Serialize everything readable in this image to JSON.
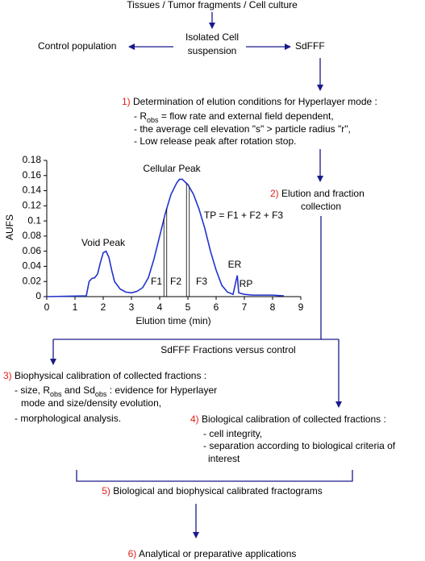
{
  "diagram": {
    "source": "Tissues / Tumor fragments / Cell culture",
    "suspension": [
      "Isolated Cell",
      "suspension"
    ],
    "control": "Control population",
    "sdfff": "SdFFF",
    "step1": {
      "number": "1)",
      "title": "Determination of elution conditions for Hyperlayer mode :",
      "items": [
        [
          "- R",
          "obs",
          " = flow rate and external field dependent,"
        ],
        [
          "- the average cell elevation \"s\" > particle radius \"r\","
        ],
        [
          "- Low release peak after rotation stop."
        ]
      ]
    },
    "step2": {
      "number": "2)",
      "lines": [
        "Elution and fraction",
        "collection"
      ]
    },
    "fractions_vs_control": "SdFFF Fractions versus control",
    "step3": {
      "number": "3)",
      "title": "Biophysical calibration of collected fractions :",
      "items": [
        [
          "- size, R",
          "obs",
          " and Sd",
          "obs",
          " : evidence for Hyperlayer"
        ],
        [
          "mode and size/density evolution,"
        ],
        [
          "- morphological analysis."
        ]
      ]
    },
    "step4": {
      "number": "4)",
      "title": "Biological calibration of collected fractions :",
      "items": [
        [
          "- cell integrity,"
        ],
        [
          "- separation according to biological criteria of"
        ],
        [
          "interest"
        ]
      ]
    },
    "step5": {
      "number": "5)",
      "title": "Biological and biophysical calibrated fractograms"
    },
    "step6": {
      "number": "6)",
      "title": "Analytical or preparative applications"
    }
  },
  "chart_data": {
    "type": "line",
    "x_label": "Elution time (min)",
    "y_label": "AUFS",
    "x": [
      0,
      1.4,
      1.5,
      1.6,
      1.7,
      1.8,
      1.9,
      2.0,
      2.1,
      2.2,
      2.3,
      2.4,
      2.6,
      2.8,
      3.0,
      3.2,
      3.4,
      3.6,
      3.8,
      4.0,
      4.2,
      4.4,
      4.6,
      4.7,
      4.8,
      5.0,
      5.2,
      5.4,
      5.6,
      5.8,
      6.0,
      6.2,
      6.4,
      6.6,
      6.7,
      6.75,
      6.8,
      6.9,
      7.0,
      7.3,
      8.0,
      8.4
    ],
    "values": [
      0,
      0.001,
      0.02,
      0.024,
      0.025,
      0.03,
      0.045,
      0.058,
      0.06,
      0.052,
      0.035,
      0.02,
      0.01,
      0.006,
      0.005,
      0.007,
      0.012,
      0.025,
      0.05,
      0.08,
      0.11,
      0.135,
      0.15,
      0.155,
      0.155,
      0.148,
      0.135,
      0.115,
      0.09,
      0.06,
      0.035,
      0.015,
      0.006,
      0.003,
      0.02,
      0.028,
      0.005,
      0.004,
      0.003,
      0.002,
      0.002,
      0.001
    ],
    "color": "#2233cc",
    "fraction_limits": [
      4.15,
      4.25,
      4.95,
      5.05
    ],
    "annotations": [
      "Void Peak",
      "Cellular Peak",
      "TP = F1 + F2 + F3",
      "F1",
      "F2",
      "F3",
      "ER",
      "RP"
    ],
    "xlim": [
      0,
      9
    ],
    "xticks": [
      0,
      1,
      2,
      3,
      4,
      5,
      6,
      7,
      8,
      9
    ],
    "ylim": [
      0,
      0.18
    ],
    "yticks": [
      0,
      0.02,
      0.04,
      0.06,
      0.08,
      0.1,
      0.12,
      0.14,
      0.16,
      0.18
    ]
  }
}
